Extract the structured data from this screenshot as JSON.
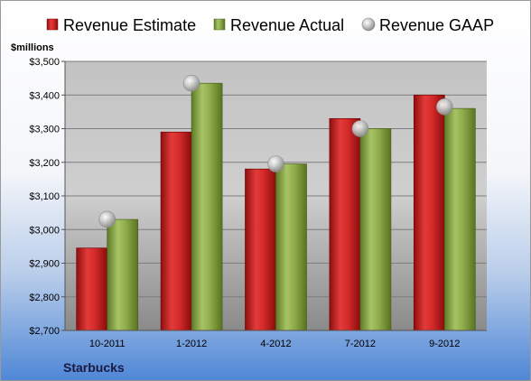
{
  "chart_data": {
    "type": "bar",
    "unit_label": "$millions",
    "company": "Starbucks",
    "categories": [
      "10-2011",
      "1-2012",
      "4-2012",
      "7-2012",
      "9-2012"
    ],
    "series": [
      {
        "name": "Revenue Estimate",
        "kind": "bar",
        "color": "#d42a2a",
        "values": [
          2945,
          3290,
          3180,
          3330,
          3400
        ]
      },
      {
        "name": "Revenue Actual",
        "kind": "bar",
        "color": "#8fac4a",
        "values": [
          3030,
          3435,
          3195,
          3300,
          3360
        ]
      },
      {
        "name": "Revenue GAAP",
        "kind": "marker",
        "color": "#b8b8b8",
        "values": [
          3030,
          3435,
          3195,
          3300,
          3365
        ]
      }
    ],
    "ylim": [
      2700,
      3500
    ],
    "yticks": [
      2700,
      2800,
      2900,
      3000,
      3100,
      3200,
      3300,
      3400,
      3500
    ],
    "ytick_labels": [
      "$2,700",
      "$2,800",
      "$2,900",
      "$3,000",
      "$3,100",
      "$3,200",
      "$3,300",
      "$3,400",
      "$3,500"
    ],
    "grid": true,
    "legend_position": "top"
  }
}
